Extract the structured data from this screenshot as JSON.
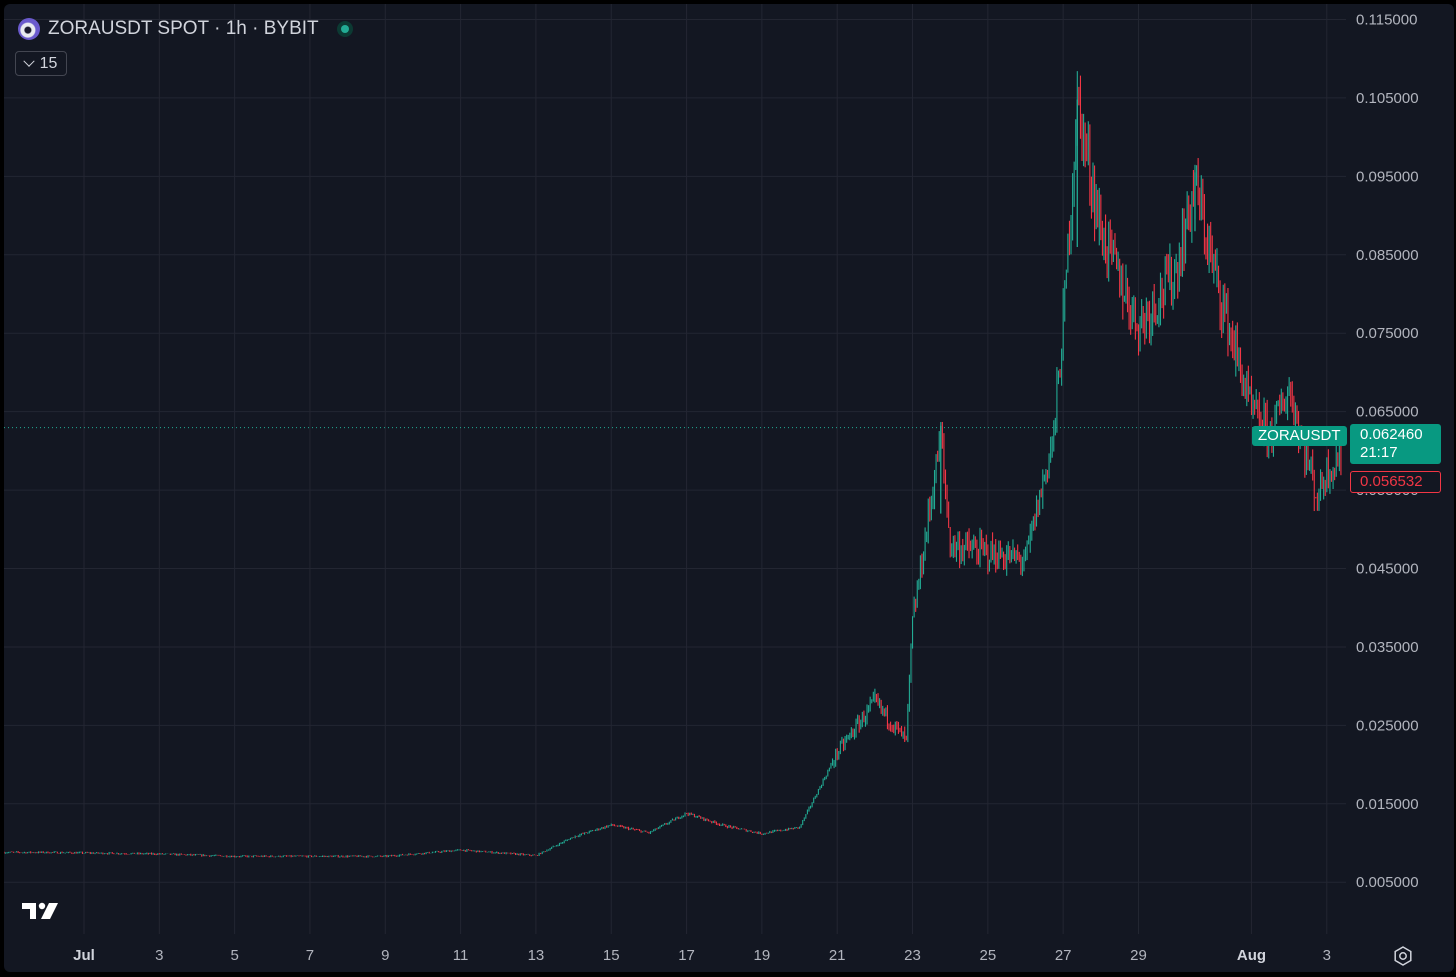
{
  "header": {
    "symbol": "ZORAUSDT SPOT",
    "separator1": "·",
    "interval": "1h",
    "separator2": "·",
    "exchange": "BYBIT",
    "collapse_count": "15"
  },
  "price_labels": {
    "symbol_badge": "ZORAUSDT",
    "last_price": "0.062460",
    "countdown": "21:17",
    "low_marker": "0.056532"
  },
  "colors": {
    "up": "#22ab94",
    "down": "#f23645",
    "background": "#131722",
    "grid": "#232632",
    "axis_text": "#b2b5be"
  },
  "icons": {
    "logo": "tradingview-logo",
    "settings": "gear-icon",
    "collapse": "chevron-down-icon",
    "status": "market-open-dot"
  },
  "chart_data": {
    "type": "candlestick",
    "symbol": "ZORAUSDT",
    "interval": "1h",
    "y_ticks": [
      "0.115000",
      "0.105000",
      "0.095000",
      "0.085000",
      "0.075000",
      "0.065000",
      "0.055000",
      "0.045000",
      "0.035000",
      "0.025000",
      "0.015000",
      "0.005000"
    ],
    "ylim": [
      0.0,
      0.117
    ],
    "x_ticks": [
      "Jul",
      "3",
      "5",
      "7",
      "9",
      "11",
      "13",
      "15",
      "17",
      "19",
      "21",
      "23",
      "25",
      "27",
      "29",
      "Aug",
      "3"
    ],
    "x_tick_dates": [
      "2025-07-01",
      "2025-07-03",
      "2025-07-05",
      "2025-07-07",
      "2025-07-09",
      "2025-07-11",
      "2025-07-13",
      "2025-07-15",
      "2025-07-17",
      "2025-07-19",
      "2025-07-21",
      "2025-07-23",
      "2025-07-25",
      "2025-07-27",
      "2025-07-29",
      "2025-08-01",
      "2025-08-03"
    ],
    "approx_close_path": [
      {
        "date": "2025-06-30",
        "close": 0.0088
      },
      {
        "date": "2025-07-03",
        "close": 0.0086
      },
      {
        "date": "2025-07-05",
        "close": 0.0083
      },
      {
        "date": "2025-07-09",
        "close": 0.0083
      },
      {
        "date": "2025-07-11",
        "close": 0.0091
      },
      {
        "date": "2025-07-13",
        "close": 0.0084
      },
      {
        "date": "2025-07-14",
        "close": 0.0108
      },
      {
        "date": "2025-07-15",
        "close": 0.0123
      },
      {
        "date": "2025-07-16",
        "close": 0.0113
      },
      {
        "date": "2025-07-17",
        "close": 0.0138
      },
      {
        "date": "2025-07-18",
        "close": 0.0122
      },
      {
        "date": "2025-07-19",
        "close": 0.0112
      },
      {
        "date": "2025-07-20",
        "close": 0.012
      },
      {
        "date": "2025-07-21",
        "close": 0.0215
      },
      {
        "date": "2025-07-22",
        "close": 0.028
      },
      {
        "date": "2025-07-22T20:00",
        "close": 0.023
      },
      {
        "date": "2025-07-23",
        "close": 0.038
      },
      {
        "date": "2025-07-23T18:00",
        "close": 0.062
      },
      {
        "date": "2025-07-24",
        "close": 0.048
      },
      {
        "date": "2025-07-25",
        "close": 0.047
      },
      {
        "date": "2025-07-26",
        "close": 0.046
      },
      {
        "date": "2025-07-26T18:00",
        "close": 0.062
      },
      {
        "date": "2025-07-27",
        "close": 0.076
      },
      {
        "date": "2025-07-27T09:00",
        "close": 0.1045
      },
      {
        "date": "2025-07-28",
        "close": 0.088
      },
      {
        "date": "2025-07-29",
        "close": 0.076
      },
      {
        "date": "2025-07-30",
        "close": 0.083
      },
      {
        "date": "2025-07-30T12:00",
        "close": 0.094
      },
      {
        "date": "2025-07-31",
        "close": 0.083
      },
      {
        "date": "2025-08-01",
        "close": 0.065
      },
      {
        "date": "2025-08-01T12:00",
        "close": 0.062
      },
      {
        "date": "2025-08-02",
        "close": 0.068
      },
      {
        "date": "2025-08-02T18:00",
        "close": 0.054
      },
      {
        "date": "2025-08-03",
        "close": 0.0575
      },
      {
        "date": "2025-08-03T08:00",
        "close": 0.059
      }
    ],
    "last_price": 0.06246,
    "marked_low": 0.056532,
    "grid": true
  }
}
